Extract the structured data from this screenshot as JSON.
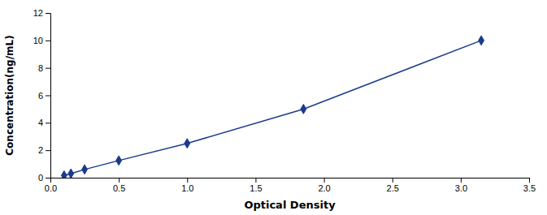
{
  "chart_data": {
    "type": "line",
    "x": [
      0.1,
      0.15,
      0.25,
      0.5,
      1.0,
      1.85,
      3.15
    ],
    "values": [
      0.16,
      0.3,
      0.6,
      1.25,
      2.5,
      5.0,
      10.0
    ],
    "color": "#1a3a8c",
    "marker": "diamond",
    "xlabel": "Optical Density",
    "ylabel": "Concentration(ng/mL)",
    "xlim": [
      0,
      3.5
    ],
    "ylim": [
      0,
      12
    ],
    "xticks": [
      {
        "value": 0,
        "label": "0.0"
      },
      0.5,
      {
        "value": 1.0,
        "label": "1.0"
      },
      1.5,
      {
        "value": 2.0,
        "label": "2.0"
      },
      2.5,
      {
        "value": 3.0,
        "label": "3.0"
      },
      3.5
    ],
    "yticks": [
      0,
      2,
      4,
      6,
      8,
      10,
      12
    ],
    "grid": false
  }
}
